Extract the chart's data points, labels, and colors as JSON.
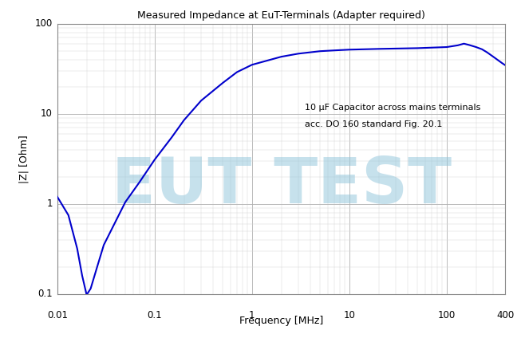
{
  "title": "Measured Impedance at EuT-Terminals (Adapter required)",
  "xlabel": "Frequency [MHz]",
  "ylabel": "|Z| [Ohm]",
  "annotation_line1": "10 μF Capacitor across mains terminals",
  "annotation_line2": "acc. DO 160 standard Fig. 20.1",
  "watermark": "EUT TEST",
  "watermark_color": "#8ec4db",
  "watermark_alpha": 0.5,
  "line_color": "#0000cc",
  "background_color": "#ffffff",
  "grid_color_major": "#b0b0b0",
  "grid_color_minor": "#d8d8d8",
  "xlim_log": [
    0.01,
    400
  ],
  "ylim_log": [
    0.1,
    100
  ],
  "curve_points": [
    [
      0.01,
      1.2
    ],
    [
      0.013,
      0.75
    ],
    [
      0.016,
      0.32
    ],
    [
      0.018,
      0.16
    ],
    [
      0.02,
      0.098
    ],
    [
      0.022,
      0.115
    ],
    [
      0.026,
      0.21
    ],
    [
      0.03,
      0.35
    ],
    [
      0.04,
      0.65
    ],
    [
      0.05,
      1.05
    ],
    [
      0.07,
      1.75
    ],
    [
      0.1,
      3.1
    ],
    [
      0.15,
      5.5
    ],
    [
      0.2,
      8.5
    ],
    [
      0.3,
      14.0
    ],
    [
      0.5,
      22.0
    ],
    [
      0.7,
      29.0
    ],
    [
      1.0,
      35.0
    ],
    [
      2.0,
      43.0
    ],
    [
      3.0,
      46.5
    ],
    [
      5.0,
      49.5
    ],
    [
      7.0,
      50.5
    ],
    [
      10.0,
      51.5
    ],
    [
      20.0,
      52.5
    ],
    [
      50.0,
      53.5
    ],
    [
      100.0,
      55.0
    ],
    [
      130.0,
      57.5
    ],
    [
      150.0,
      60.0
    ],
    [
      170.0,
      58.0
    ],
    [
      200.0,
      55.0
    ],
    [
      230.0,
      52.0
    ],
    [
      260.0,
      48.0
    ],
    [
      300.0,
      43.0
    ],
    [
      340.0,
      39.0
    ],
    [
      370.0,
      36.5
    ],
    [
      400.0,
      34.5
    ]
  ]
}
